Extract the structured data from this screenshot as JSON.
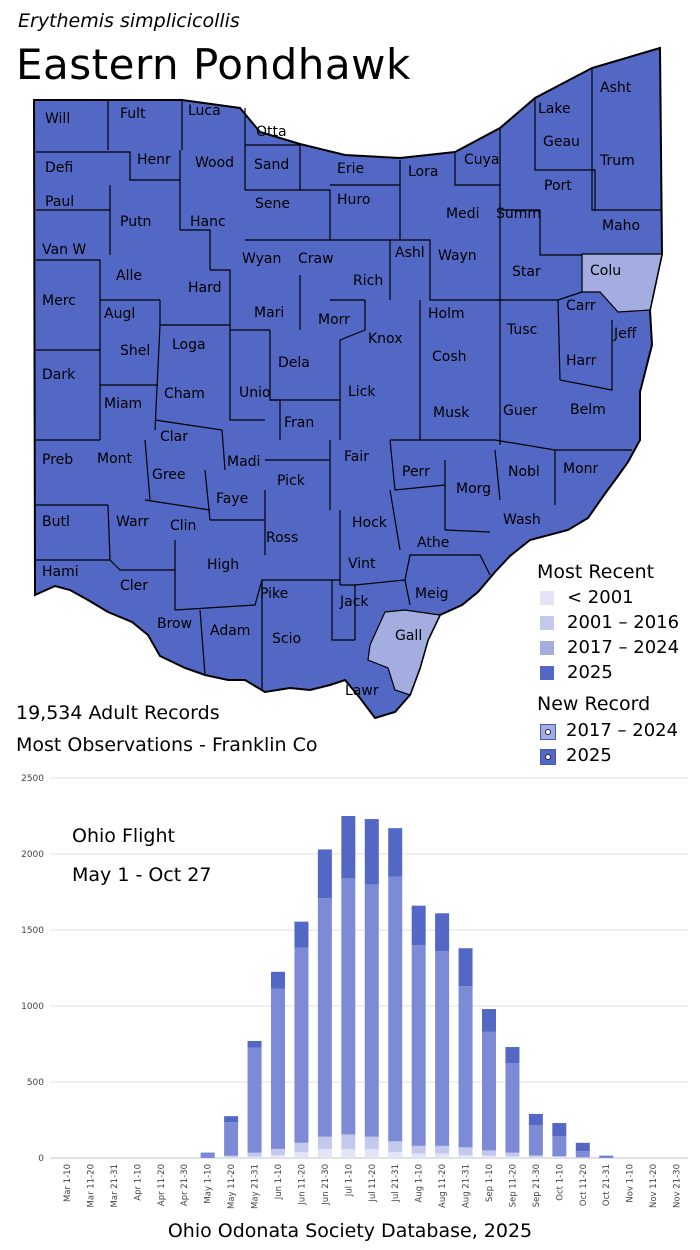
{
  "header": {
    "scientific_name": "Erythemis simplicicollis",
    "common_name": "Eastern Pondhawk"
  },
  "stats": {
    "records": "19,534  Adult Records",
    "most_observations": "Most Observations - Franklin Co"
  },
  "legend": {
    "title": "Most Recent",
    "items": [
      {
        "label": "< 2001",
        "color": "#e3e5f6"
      },
      {
        "label": "2001 – 2016",
        "color": "#c3c8ec"
      },
      {
        "label": "2017 – 2024",
        "color": "#a3addf"
      },
      {
        "label": "2025",
        "color": "#5367c4"
      }
    ],
    "new_record_title": "New Record",
    "new_record_items": [
      {
        "label": "2017 – 2024",
        "color": "#a3addf"
      },
      {
        "label": "2025",
        "color": "#5367c4"
      }
    ]
  },
  "map": {
    "fill_colors": {
      "2025": "#5367c4",
      "2017-2024": "#a3addf"
    },
    "counties": [
      {
        "label": "Will",
        "period": "2025"
      },
      {
        "label": "Fult",
        "period": "2025"
      },
      {
        "label": "Luca",
        "period": "2025"
      },
      {
        "label": "Otta",
        "period": "2025"
      },
      {
        "label": "Lake",
        "period": "2025"
      },
      {
        "label": "Asht",
        "period": "2025"
      },
      {
        "label": "Defi",
        "period": "2025"
      },
      {
        "label": "Henr",
        "period": "2025"
      },
      {
        "label": "Wood",
        "period": "2025"
      },
      {
        "label": "Sand",
        "period": "2025"
      },
      {
        "label": "Erie",
        "period": "2025"
      },
      {
        "label": "Lora",
        "period": "2025"
      },
      {
        "label": "Cuya",
        "period": "2025"
      },
      {
        "label": "Geau",
        "period": "2025"
      },
      {
        "label": "Trum",
        "period": "2025"
      },
      {
        "label": "Paul",
        "period": "2025"
      },
      {
        "label": "Putn",
        "period": "2025"
      },
      {
        "label": "Hanc",
        "period": "2025"
      },
      {
        "label": "Sene",
        "period": "2025"
      },
      {
        "label": "Huro",
        "period": "2025"
      },
      {
        "label": "Medi",
        "period": "2025"
      },
      {
        "label": "Summ",
        "period": "2025"
      },
      {
        "label": "Port",
        "period": "2025"
      },
      {
        "label": "Maho",
        "period": "2025"
      },
      {
        "label": "Van W",
        "period": "2025"
      },
      {
        "label": "Alle",
        "period": "2025"
      },
      {
        "label": "Wyan",
        "period": "2025"
      },
      {
        "label": "Craw",
        "period": "2025"
      },
      {
        "label": "Rich",
        "period": "2025"
      },
      {
        "label": "Ashl",
        "period": "2025"
      },
      {
        "label": "Wayn",
        "period": "2025"
      },
      {
        "label": "Star",
        "period": "2025"
      },
      {
        "label": "Colu",
        "period": "2017-2024"
      },
      {
        "label": "Merc",
        "period": "2025"
      },
      {
        "label": "Augl",
        "period": "2025"
      },
      {
        "label": "Hard",
        "period": "2025"
      },
      {
        "label": "Mari",
        "period": "2025"
      },
      {
        "label": "Morr",
        "period": "2025"
      },
      {
        "label": "Knox",
        "period": "2025"
      },
      {
        "label": "Holm",
        "period": "2025"
      },
      {
        "label": "Tusc",
        "period": "2025"
      },
      {
        "label": "Carr",
        "period": "2025"
      },
      {
        "label": "Jeff",
        "period": "2025"
      },
      {
        "label": "Shel",
        "period": "2025"
      },
      {
        "label": "Loga",
        "period": "2025"
      },
      {
        "label": "Dela",
        "period": "2025"
      },
      {
        "label": "Cosh",
        "period": "2025"
      },
      {
        "label": "Harr",
        "period": "2025"
      },
      {
        "label": "Dark",
        "period": "2025"
      },
      {
        "label": "Cham",
        "period": "2025"
      },
      {
        "label": "Unio",
        "period": "2025"
      },
      {
        "label": "Lick",
        "period": "2025"
      },
      {
        "label": "Miam",
        "period": "2025"
      },
      {
        "label": "Fran",
        "period": "2025"
      },
      {
        "label": "Musk",
        "period": "2025"
      },
      {
        "label": "Guer",
        "period": "2025"
      },
      {
        "label": "Belm",
        "period": "2025"
      },
      {
        "label": "Clar",
        "period": "2025"
      },
      {
        "label": "Preb",
        "period": "2025"
      },
      {
        "label": "Mont",
        "period": "2025"
      },
      {
        "label": "Madi",
        "period": "2025"
      },
      {
        "label": "Fair",
        "period": "2025"
      },
      {
        "label": "Perr",
        "period": "2025"
      },
      {
        "label": "Nobl",
        "period": "2025"
      },
      {
        "label": "Monr",
        "period": "2025"
      },
      {
        "label": "Gree",
        "period": "2025"
      },
      {
        "label": "Pick",
        "period": "2025"
      },
      {
        "label": "Faye",
        "period": "2025"
      },
      {
        "label": "Morg",
        "period": "2025"
      },
      {
        "label": "Butl",
        "period": "2025"
      },
      {
        "label": "Warr",
        "period": "2025"
      },
      {
        "label": "Clin",
        "period": "2025"
      },
      {
        "label": "Hock",
        "period": "2025"
      },
      {
        "label": "Wash",
        "period": "2025"
      },
      {
        "label": "Ross",
        "period": "2025"
      },
      {
        "label": "Athe",
        "period": "2025"
      },
      {
        "label": "Hami",
        "period": "2025"
      },
      {
        "label": "Cler",
        "period": "2025"
      },
      {
        "label": "High",
        "period": "2025"
      },
      {
        "label": "Vint",
        "period": "2025"
      },
      {
        "label": "Meig",
        "period": "2025"
      },
      {
        "label": "Pike",
        "period": "2025"
      },
      {
        "label": "Jack",
        "period": "2025"
      },
      {
        "label": "Brow",
        "period": "2025"
      },
      {
        "label": "Adam",
        "period": "2025"
      },
      {
        "label": "Scio",
        "period": "2025"
      },
      {
        "label": "Gall",
        "period": "2017-2024"
      },
      {
        "label": "Lawr",
        "period": "2025"
      }
    ]
  },
  "chart_data": {
    "type": "bar",
    "stacked": true,
    "annotation_lines": [
      "Ohio Flight",
      "May 1 - Oct 27"
    ],
    "categories": [
      "Mar 1-10",
      "Mar 11-20",
      "Mar 21-31",
      "Apr 1-10",
      "Apr 11-20",
      "Apr 21-30",
      "May 1-10",
      "May 11-20",
      "May 21-31",
      "Jun 1-10",
      "Jun 11-20",
      "Jun 21-30",
      "Jul 1-10",
      "Jul 11-20",
      "Jul 21-31",
      "Aug 1-10",
      "Aug 11-20",
      "Aug 21-31",
      "Sep 1-10",
      "Sep 11-20",
      "Sep 21-30",
      "Oct 1-10",
      "Oct 11-20",
      "Oct 21-31",
      "Nov 1-10",
      "Nov 11-20",
      "Nov 21-30"
    ],
    "series": [
      {
        "color": "#e3e5f6",
        "values": [
          0,
          0,
          0,
          0,
          0,
          0,
          0,
          5,
          10,
          20,
          40,
          60,
          60,
          60,
          40,
          30,
          30,
          20,
          15,
          10,
          5,
          5,
          2,
          0,
          0,
          0,
          0
        ]
      },
      {
        "color": "#c3c8ec",
        "values": [
          0,
          0,
          0,
          0,
          0,
          0,
          0,
          10,
          25,
          40,
          60,
          80,
          95,
          80,
          70,
          50,
          50,
          50,
          35,
          25,
          12,
          8,
          3,
          0,
          0,
          0,
          0
        ]
      },
      {
        "color": "#7d8ad6",
        "values": [
          0,
          0,
          0,
          0,
          0,
          0,
          30,
          220,
          690,
          1055,
          1285,
          1570,
          1685,
          1660,
          1740,
          1320,
          1280,
          1060,
          780,
          590,
          200,
          130,
          40,
          10,
          0,
          0,
          0
        ]
      },
      {
        "color": "#5367c4",
        "values": [
          0,
          0,
          0,
          0,
          0,
          0,
          5,
          40,
          45,
          110,
          170,
          320,
          410,
          430,
          320,
          260,
          250,
          250,
          150,
          105,
          73,
          87,
          55,
          5,
          0,
          0,
          0
        ]
      }
    ],
    "ylim": [
      0,
      2500
    ],
    "yticks": [
      0,
      500,
      1000,
      1500,
      2000,
      2500
    ],
    "grid": true,
    "source": "Ohio Odonata Society Database, 2025"
  }
}
